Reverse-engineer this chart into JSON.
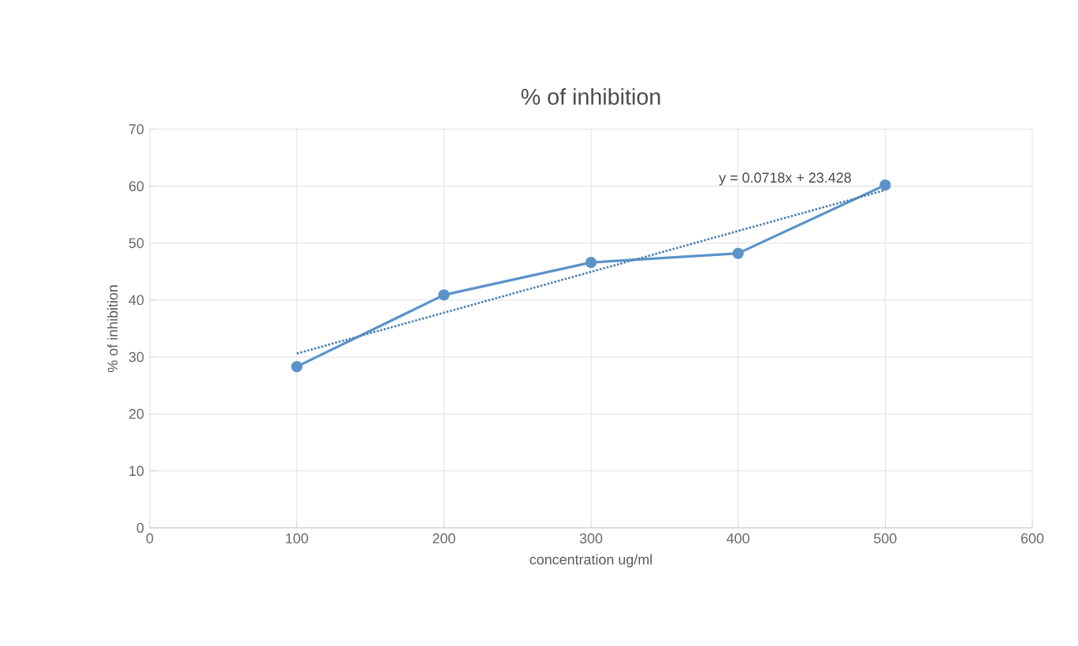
{
  "chart_data": {
    "type": "line",
    "title": "% of inhibition",
    "xlabel": "concentration ug/ml",
    "ylabel": "% of inhibition",
    "x": [
      100,
      200,
      300,
      400,
      500
    ],
    "series": [
      {
        "color": "#5b93c9",
        "values": [
          28.3,
          40.9,
          46.6,
          48.2,
          60.2
        ],
        "marker": "circle",
        "line_style": "solid"
      },
      {
        "type": "line",
        "color": "#4a7fb5",
        "x": [
          100,
          500
        ],
        "values": [
          30.6,
          59.3
        ],
        "marker": "none",
        "line_style": "dotted"
      }
    ],
    "xlim": [
      0,
      600
    ],
    "xticks": [
      0,
      100,
      200,
      300,
      400,
      500,
      600
    ],
    "ylim": [
      0,
      70
    ],
    "yticks": [
      0,
      10,
      20,
      30,
      40,
      50,
      60,
      70
    ],
    "grid": true,
    "annotations": [
      "y = 0.0718x + 23.428"
    ]
  }
}
